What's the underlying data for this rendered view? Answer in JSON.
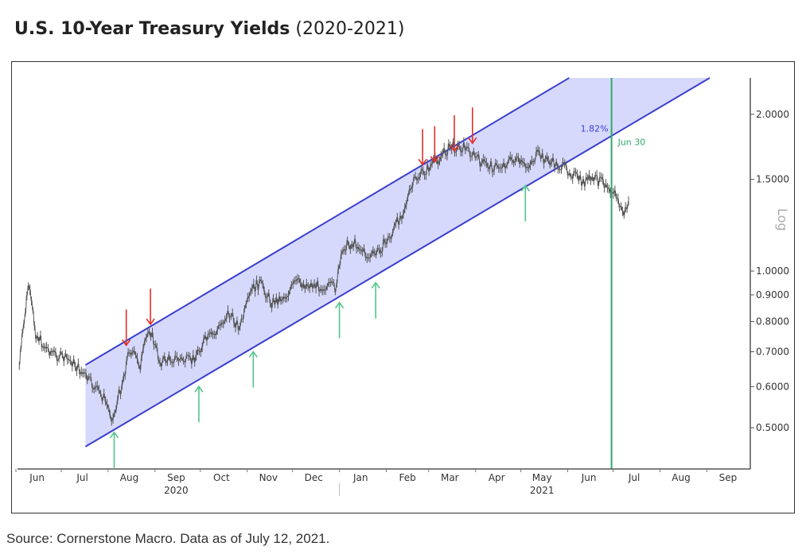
{
  "title": {
    "bold": "U.S. 10-Year Treasury Yields",
    "sub": "(2020-2021)"
  },
  "source": "Source: Cornerstone Macro. Data as of July 12, 2021.",
  "chart_data": {
    "type": "line",
    "title": "U.S. 10-Year Treasury Yields (2020-2021)",
    "y_scale": "log",
    "y_axis_label": "Log",
    "y_axis_position": "right",
    "ylim": [
      0.43,
      2.35
    ],
    "xlim": [
      "2020-06-01",
      "2021-09-30"
    ],
    "y_ticks": [
      "2.0000",
      "1.5000",
      "1.0000",
      "0.9000",
      "0.8000",
      "0.7000",
      "0.6000",
      "0.5000"
    ],
    "x_ticks": [
      {
        "label": "Jun",
        "month": "2020-06"
      },
      {
        "label": "Jul",
        "month": "2020-07"
      },
      {
        "label": "Aug",
        "month": "2020-08"
      },
      {
        "label": "Sep",
        "month": "2020-09"
      },
      {
        "label": "Oct",
        "month": "2020-10"
      },
      {
        "label": "Nov",
        "month": "2020-11"
      },
      {
        "label": "Dec",
        "month": "2020-12"
      },
      {
        "label": "Jan",
        "month": "2021-01"
      },
      {
        "label": "Feb",
        "month": "2021-02"
      },
      {
        "label": "Mar",
        "month": "2021-03"
      },
      {
        "label": "Apr",
        "month": "2021-04"
      },
      {
        "label": "May",
        "month": "2021-05"
      },
      {
        "label": "Jun",
        "month": "2021-06"
      },
      {
        "label": "Jul",
        "month": "2021-07"
      },
      {
        "label": "Aug",
        "month": "2021-08"
      },
      {
        "label": "Sep",
        "month": "2021-09"
      }
    ],
    "year_labels": [
      {
        "label": "2020",
        "month": "2020-09"
      },
      {
        "label": "2021",
        "month": "2021-05"
      }
    ],
    "grid": false,
    "series": [
      {
        "color": "#555555",
        "points": [
          [
            "2020-06-03",
            0.66
          ],
          [
            "2020-06-09",
            0.94
          ],
          [
            "2020-06-14",
            0.76
          ],
          [
            "2020-06-19",
            0.72
          ],
          [
            "2020-06-27",
            0.69
          ],
          [
            "2020-07-08",
            0.67
          ],
          [
            "2020-07-18",
            0.62
          ],
          [
            "2020-07-29",
            0.57
          ],
          [
            "2020-08-04",
            0.52
          ],
          [
            "2020-08-10",
            0.61
          ],
          [
            "2020-08-15",
            0.71
          ],
          [
            "2020-08-22",
            0.66
          ],
          [
            "2020-08-28",
            0.78
          ],
          [
            "2020-09-04",
            0.67
          ],
          [
            "2020-09-12",
            0.68
          ],
          [
            "2020-09-25",
            0.67
          ],
          [
            "2020-10-03",
            0.73
          ],
          [
            "2020-10-11",
            0.76
          ],
          [
            "2020-10-19",
            0.83
          ],
          [
            "2020-10-27",
            0.78
          ],
          [
            "2020-11-04",
            0.92
          ],
          [
            "2020-11-09",
            0.95
          ],
          [
            "2020-11-17",
            0.87
          ],
          [
            "2020-11-27",
            0.9
          ],
          [
            "2020-12-03",
            0.95
          ],
          [
            "2020-12-13",
            0.94
          ],
          [
            "2020-12-29",
            0.93
          ],
          [
            "2021-01-04",
            1.12
          ],
          [
            "2021-01-12",
            1.13
          ],
          [
            "2021-01-20",
            1.06
          ],
          [
            "2021-01-25",
            1.08
          ],
          [
            "2021-02-04",
            1.17
          ],
          [
            "2021-02-12",
            1.31
          ],
          [
            "2021-02-20",
            1.5
          ],
          [
            "2021-02-27",
            1.56
          ],
          [
            "2021-03-07",
            1.64
          ],
          [
            "2021-03-15",
            1.73
          ],
          [
            "2021-03-25",
            1.73
          ],
          [
            "2021-04-05",
            1.61
          ],
          [
            "2021-04-15",
            1.58
          ],
          [
            "2021-04-26",
            1.64
          ],
          [
            "2021-05-04",
            1.58
          ],
          [
            "2021-05-12",
            1.67
          ],
          [
            "2021-05-22",
            1.61
          ],
          [
            "2021-06-02",
            1.56
          ],
          [
            "2021-06-10",
            1.48
          ],
          [
            "2021-06-18",
            1.5
          ],
          [
            "2021-06-26",
            1.48
          ],
          [
            "2021-07-01",
            1.43
          ],
          [
            "2021-07-06",
            1.32
          ],
          [
            "2021-07-08",
            1.29
          ],
          [
            "2021-07-12",
            1.37
          ]
        ]
      }
    ],
    "channel": {
      "fill": "#d6d9fb",
      "line_color": "#3b3fcf",
      "upper": [
        [
          "2020-07-17",
          0.66
        ],
        [
          "2021-06-02",
          2.35
        ]
      ],
      "lower": [
        [
          "2020-07-17",
          0.46
        ],
        [
          "2021-09-03",
          2.35
        ]
      ]
    },
    "marker_line": {
      "date": "2021-06-30",
      "color": "#2ea86a",
      "label": "Jun 30"
    },
    "annotation": {
      "label": "1.82%",
      "value": 1.82,
      "color": "#3b3fcf"
    },
    "resistance_arrows": {
      "color": "#e0302a",
      "points": [
        [
          "2020-08-13",
          0.72
        ],
        [
          "2020-08-29",
          0.79
        ],
        [
          "2021-02-25",
          1.6
        ],
        [
          "2021-03-05",
          1.62
        ],
        [
          "2021-03-18",
          1.7
        ],
        [
          "2021-03-30",
          1.76
        ]
      ]
    },
    "support_arrows": {
      "color": "#54c58a",
      "points": [
        [
          "2020-08-05",
          0.49
        ],
        [
          "2020-09-30",
          0.6
        ],
        [
          "2020-11-05",
          0.7
        ],
        [
          "2021-01-01",
          0.87
        ],
        [
          "2021-01-25",
          0.95
        ],
        [
          "2021-05-04",
          1.46
        ]
      ]
    }
  }
}
